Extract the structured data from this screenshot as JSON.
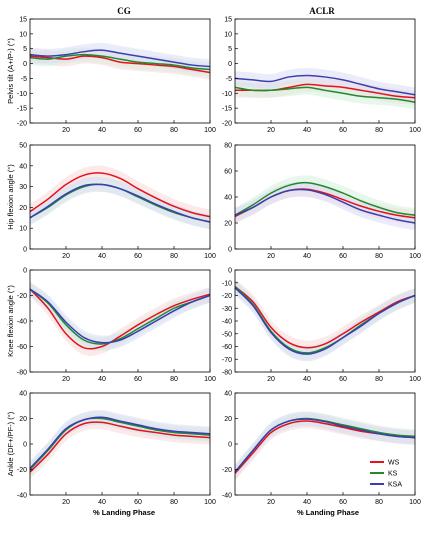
{
  "column_titles": [
    "CG",
    "ACLR"
  ],
  "xlabel": "% Landing Phase",
  "legend": [
    {
      "label": "WS",
      "color": "#e8101a"
    },
    {
      "label": "KS",
      "color": "#1f8a2e"
    },
    {
      "label": "KSA",
      "color": "#3a3fb0"
    }
  ],
  "band_colors": {
    "WS": "#fad7d7",
    "KS": "#d5f0dc",
    "KSA": "#dadcf5"
  },
  "chart_data": [
    {
      "type": "line",
      "row": 0,
      "col": 0,
      "ylabel": "Pelvis tilt (A+/P-) (°)",
      "xlim": [
        0,
        100
      ],
      "ylim": [
        -20,
        15
      ],
      "xticks": [
        20,
        40,
        60,
        80,
        100
      ],
      "yticks": [
        -20,
        -15,
        -10,
        -5,
        0,
        5,
        10,
        15
      ],
      "x": [
        0,
        10,
        20,
        30,
        40,
        50,
        60,
        70,
        80,
        90,
        100
      ],
      "series": [
        {
          "name": "WS",
          "values": [
            2.5,
            2,
            1.5,
            2.5,
            2,
            0.5,
            0,
            -0.5,
            -1,
            -2,
            -3
          ]
        },
        {
          "name": "KS",
          "values": [
            2,
            1.5,
            2.5,
            3,
            2.5,
            1.5,
            0.5,
            0,
            -0.5,
            -1.5,
            -2
          ]
        },
        {
          "name": "KSA",
          "values": [
            3,
            2.5,
            3,
            4,
            4.5,
            3.5,
            2.5,
            1.5,
            0.5,
            -0.5,
            -1
          ]
        }
      ]
    },
    {
      "type": "line",
      "row": 0,
      "col": 1,
      "ylabel": "",
      "xlim": [
        0,
        100
      ],
      "ylim": [
        -20,
        15
      ],
      "xticks": [
        20,
        40,
        60,
        80,
        100
      ],
      "yticks": [
        -20,
        -15,
        -10,
        -5,
        0,
        5,
        10,
        15
      ],
      "x": [
        0,
        10,
        20,
        30,
        40,
        50,
        60,
        70,
        80,
        90,
        100
      ],
      "series": [
        {
          "name": "WS",
          "values": [
            -9,
            -9,
            -9,
            -8,
            -7,
            -7.5,
            -8,
            -9,
            -10,
            -11,
            -11.5
          ]
        },
        {
          "name": "KS",
          "values": [
            -8,
            -9,
            -9,
            -8.5,
            -8,
            -9,
            -10,
            -11,
            -11.5,
            -12,
            -13
          ]
        },
        {
          "name": "KSA",
          "values": [
            -5,
            -5.5,
            -6,
            -4.5,
            -4,
            -4.5,
            -5.5,
            -7,
            -8.5,
            -9.5,
            -10.5
          ]
        }
      ]
    },
    {
      "type": "line",
      "row": 1,
      "col": 0,
      "ylabel": "Hip flexion angle (°)",
      "xlim": [
        0,
        100
      ],
      "ylim": [
        0,
        50
      ],
      "xticks": [
        20,
        40,
        60,
        80,
        100
      ],
      "yticks": [
        0,
        10,
        20,
        30,
        40,
        50
      ],
      "x": [
        0,
        10,
        20,
        30,
        40,
        50,
        60,
        70,
        80,
        90,
        100
      ],
      "series": [
        {
          "name": "WS",
          "values": [
            18,
            24,
            31,
            35.5,
            36.5,
            34,
            29,
            24.5,
            20.5,
            17.5,
            15.5
          ]
        },
        {
          "name": "KS",
          "values": [
            15,
            20,
            26,
            30,
            31,
            29,
            25,
            21,
            17.5,
            15,
            13
          ]
        },
        {
          "name": "KSA",
          "values": [
            15,
            20.5,
            26.5,
            30.5,
            31,
            29,
            25.5,
            21.5,
            18,
            15,
            13
          ]
        }
      ]
    },
    {
      "type": "line",
      "row": 1,
      "col": 1,
      "ylabel": "",
      "xlim": [
        0,
        100
      ],
      "ylim": [
        0,
        80
      ],
      "xticks": [
        20,
        40,
        60,
        80,
        100
      ],
      "yticks": [
        0,
        20,
        40,
        60,
        80
      ],
      "x": [
        0,
        10,
        20,
        30,
        40,
        50,
        60,
        70,
        80,
        90,
        100
      ],
      "series": [
        {
          "name": "WS",
          "values": [
            25,
            32,
            40,
            45,
            46,
            43,
            38,
            33,
            29,
            26,
            24
          ]
        },
        {
          "name": "KS",
          "values": [
            26,
            34,
            43,
            49,
            51,
            48,
            43,
            37,
            32,
            28,
            26
          ]
        },
        {
          "name": "KSA",
          "values": [
            26,
            32,
            40,
            45,
            45.5,
            42,
            36,
            30,
            26,
            22.5,
            20
          ]
        }
      ]
    },
    {
      "type": "line",
      "row": 2,
      "col": 0,
      "ylabel": "Knee flexion angle (°)",
      "xlim": [
        0,
        100
      ],
      "ylim": [
        -80,
        0
      ],
      "xticks": [
        20,
        40,
        60,
        80,
        100
      ],
      "yticks": [
        -80,
        -60,
        -40,
        -20,
        0
      ],
      "x": [
        0,
        10,
        20,
        30,
        40,
        50,
        60,
        70,
        80,
        90,
        100
      ],
      "series": [
        {
          "name": "WS",
          "values": [
            -15,
            -30,
            -50,
            -61,
            -60,
            -52,
            -43,
            -35,
            -28,
            -23,
            -19
          ]
        },
        {
          "name": "KS",
          "values": [
            -15,
            -26,
            -43,
            -55,
            -58,
            -54,
            -46,
            -38,
            -30,
            -25,
            -20
          ]
        },
        {
          "name": "KSA",
          "values": [
            -15,
            -25,
            -41,
            -53,
            -57,
            -55,
            -48,
            -40,
            -32,
            -25,
            -20
          ]
        }
      ]
    },
    {
      "type": "line",
      "row": 2,
      "col": 1,
      "ylabel": "",
      "xlim": [
        0,
        100
      ],
      "ylim": [
        -80,
        0
      ],
      "xticks": [
        20,
        40,
        60,
        80,
        100
      ],
      "yticks": [
        -80,
        -70,
        -60,
        -50,
        -40,
        -30,
        -20,
        -10,
        0
      ],
      "x": [
        0,
        10,
        20,
        30,
        40,
        50,
        60,
        70,
        80,
        90,
        100
      ],
      "series": [
        {
          "name": "WS",
          "values": [
            -13,
            -25,
            -45,
            -57,
            -61,
            -58,
            -50,
            -41,
            -33,
            -25,
            -20
          ]
        },
        {
          "name": "KS",
          "values": [
            -13,
            -27,
            -48,
            -61,
            -65,
            -61,
            -53,
            -43,
            -34,
            -26,
            -20
          ]
        },
        {
          "name": "KSA",
          "values": [
            -14,
            -28,
            -49,
            -62,
            -66,
            -62,
            -53,
            -44,
            -34,
            -26,
            -20
          ]
        }
      ]
    },
    {
      "type": "line",
      "row": 3,
      "col": 0,
      "ylabel": "Ankle (DF+/PF-) (°)",
      "xlim": [
        0,
        100
      ],
      "ylim": [
        -40,
        40
      ],
      "xticks": [
        20,
        40,
        60,
        80,
        100
      ],
      "yticks": [
        -40,
        -20,
        0,
        20,
        40
      ],
      "x": [
        0,
        10,
        20,
        30,
        40,
        50,
        60,
        70,
        80,
        90,
        100
      ],
      "series": [
        {
          "name": "WS",
          "values": [
            -22,
            -8,
            8,
            16,
            17,
            14,
            11,
            9,
            7,
            6,
            5
          ]
        },
        {
          "name": "KS",
          "values": [
            -20,
            -5,
            11,
            19,
            20,
            17,
            14,
            11,
            9,
            8,
            7
          ]
        },
        {
          "name": "KSA",
          "values": [
            -19,
            -4,
            12,
            19,
            21,
            18,
            15,
            12,
            10,
            9,
            8
          ]
        }
      ]
    },
    {
      "type": "line",
      "row": 3,
      "col": 1,
      "ylabel": "",
      "xlim": [
        0,
        100
      ],
      "ylim": [
        -40,
        40
      ],
      "xticks": [
        20,
        40,
        60,
        80,
        100
      ],
      "yticks": [
        -40,
        -20,
        0,
        20,
        40
      ],
      "x": [
        0,
        10,
        20,
        30,
        40,
        50,
        60,
        70,
        80,
        90,
        100
      ],
      "series": [
        {
          "name": "WS",
          "values": [
            -23,
            -7,
            9,
            16,
            18,
            16,
            13,
            10,
            8,
            6,
            5
          ]
        },
        {
          "name": "KS",
          "values": [
            -22,
            -5,
            11,
            18,
            20,
            18,
            15,
            12,
            9,
            7,
            6
          ]
        },
        {
          "name": "KSA",
          "values": [
            -22,
            -5,
            11,
            18,
            19.5,
            17.5,
            14,
            11,
            8,
            6,
            5
          ]
        }
      ]
    }
  ]
}
